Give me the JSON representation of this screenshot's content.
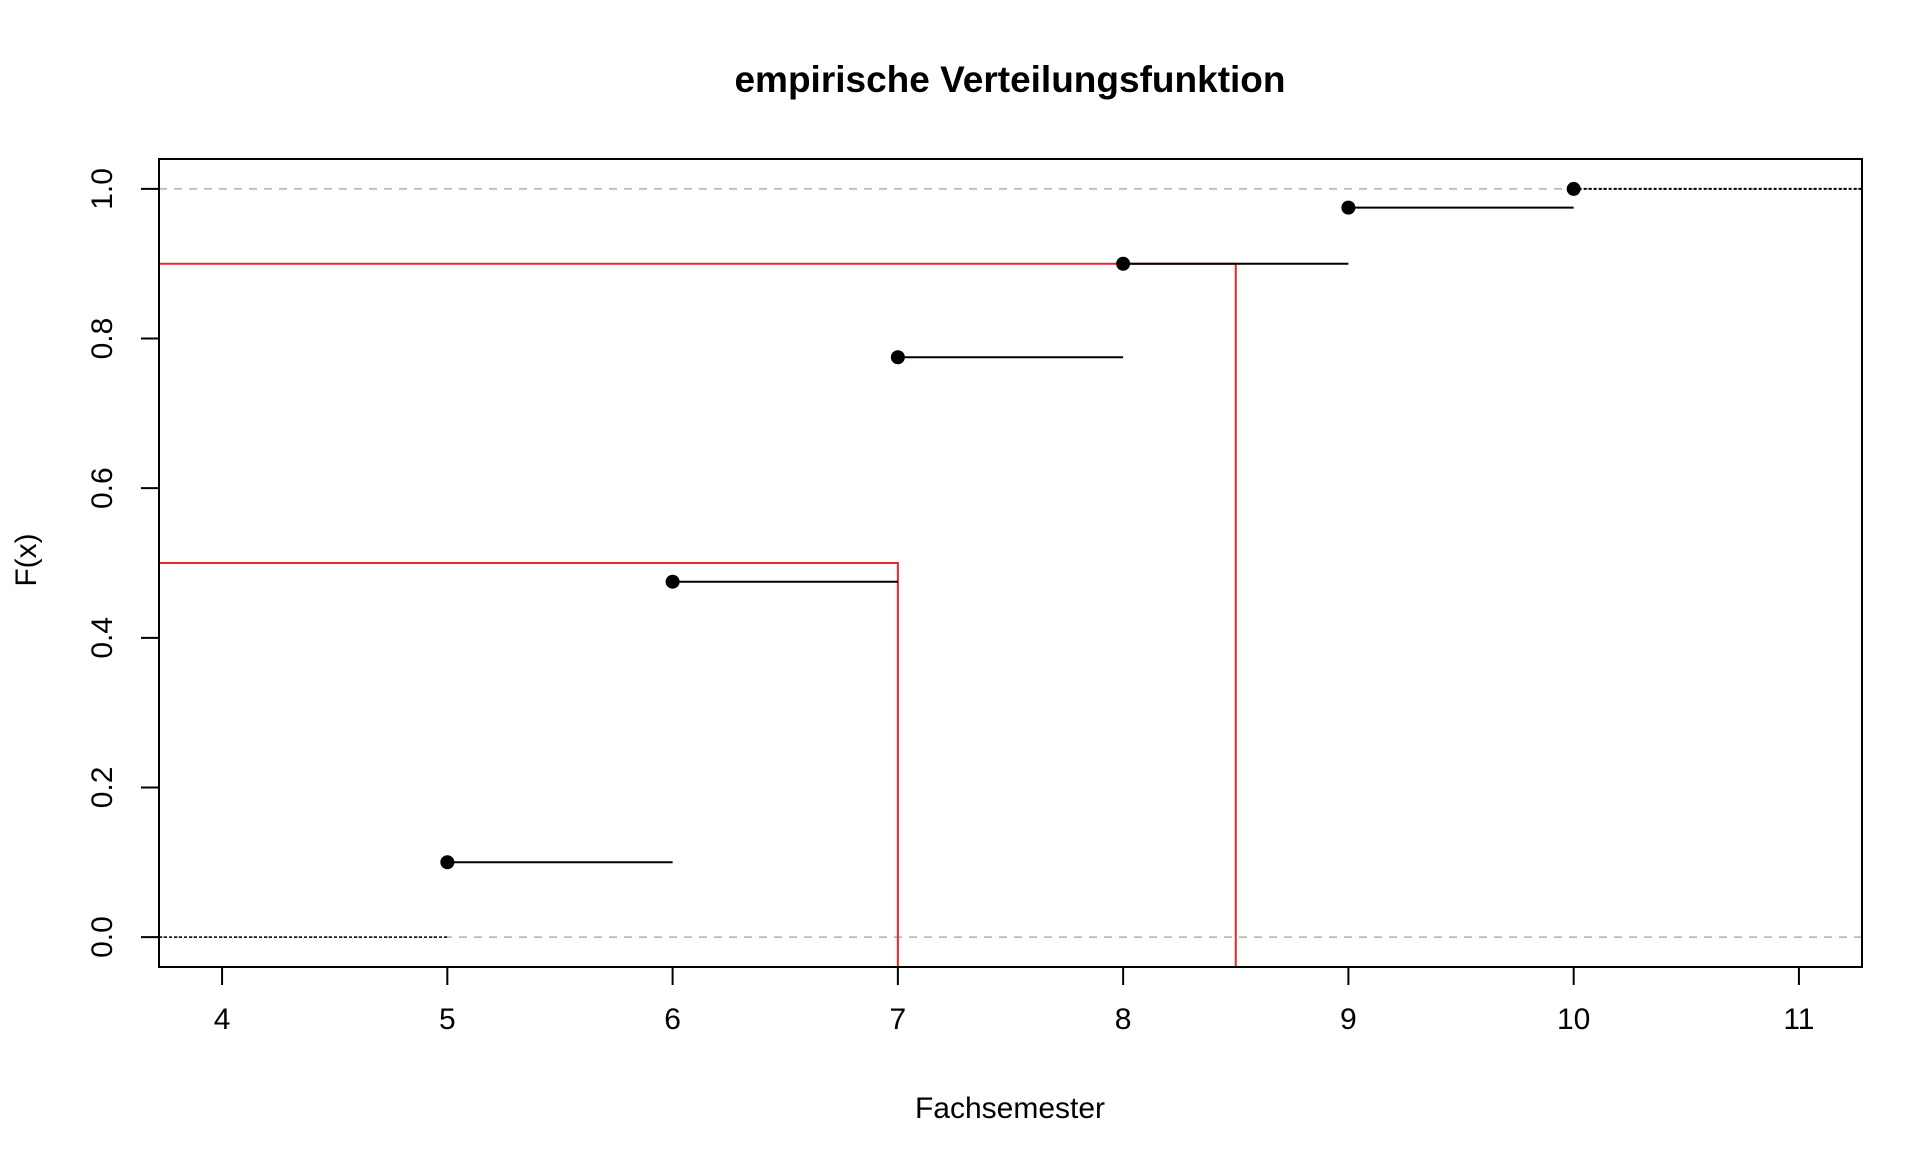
{
  "chart_data": {
    "type": "step",
    "title": "empirische Verteilungsfunktion",
    "xlabel": "Fachsemester",
    "ylabel": "F(x)",
    "xlim": [
      3.72,
      11.28
    ],
    "ylim": [
      -0.04,
      1.04
    ],
    "x_ticks": [
      "4",
      "5",
      "6",
      "7",
      "8",
      "9",
      "10",
      "11"
    ],
    "y_ticks": [
      "0.0",
      "0.2",
      "0.4",
      "0.6",
      "0.8",
      "1.0"
    ],
    "grid": false,
    "steps": [
      {
        "x": 5,
        "y": 0.1
      },
      {
        "x": 6,
        "y": 0.475
      },
      {
        "x": 7,
        "y": 0.775
      },
      {
        "x": 8,
        "y": 0.9
      },
      {
        "x": 9,
        "y": 0.975
      },
      {
        "x": 10,
        "y": 1.0
      }
    ],
    "reference_lines": [
      {
        "y": 0.0,
        "style": "dashed",
        "color": "#b0b0b0"
      },
      {
        "y": 1.0,
        "style": "dashed",
        "color": "#b0b0b0"
      }
    ],
    "quantile_markers": [
      {
        "p": 0.5,
        "x": 7,
        "color": "#e8262b"
      },
      {
        "p": 0.9,
        "x": 8.5,
        "color": "#e8262b"
      }
    ],
    "colors": {
      "step": "#000000",
      "quantile": "#e8262b",
      "reference": "#b0b0b0"
    }
  }
}
